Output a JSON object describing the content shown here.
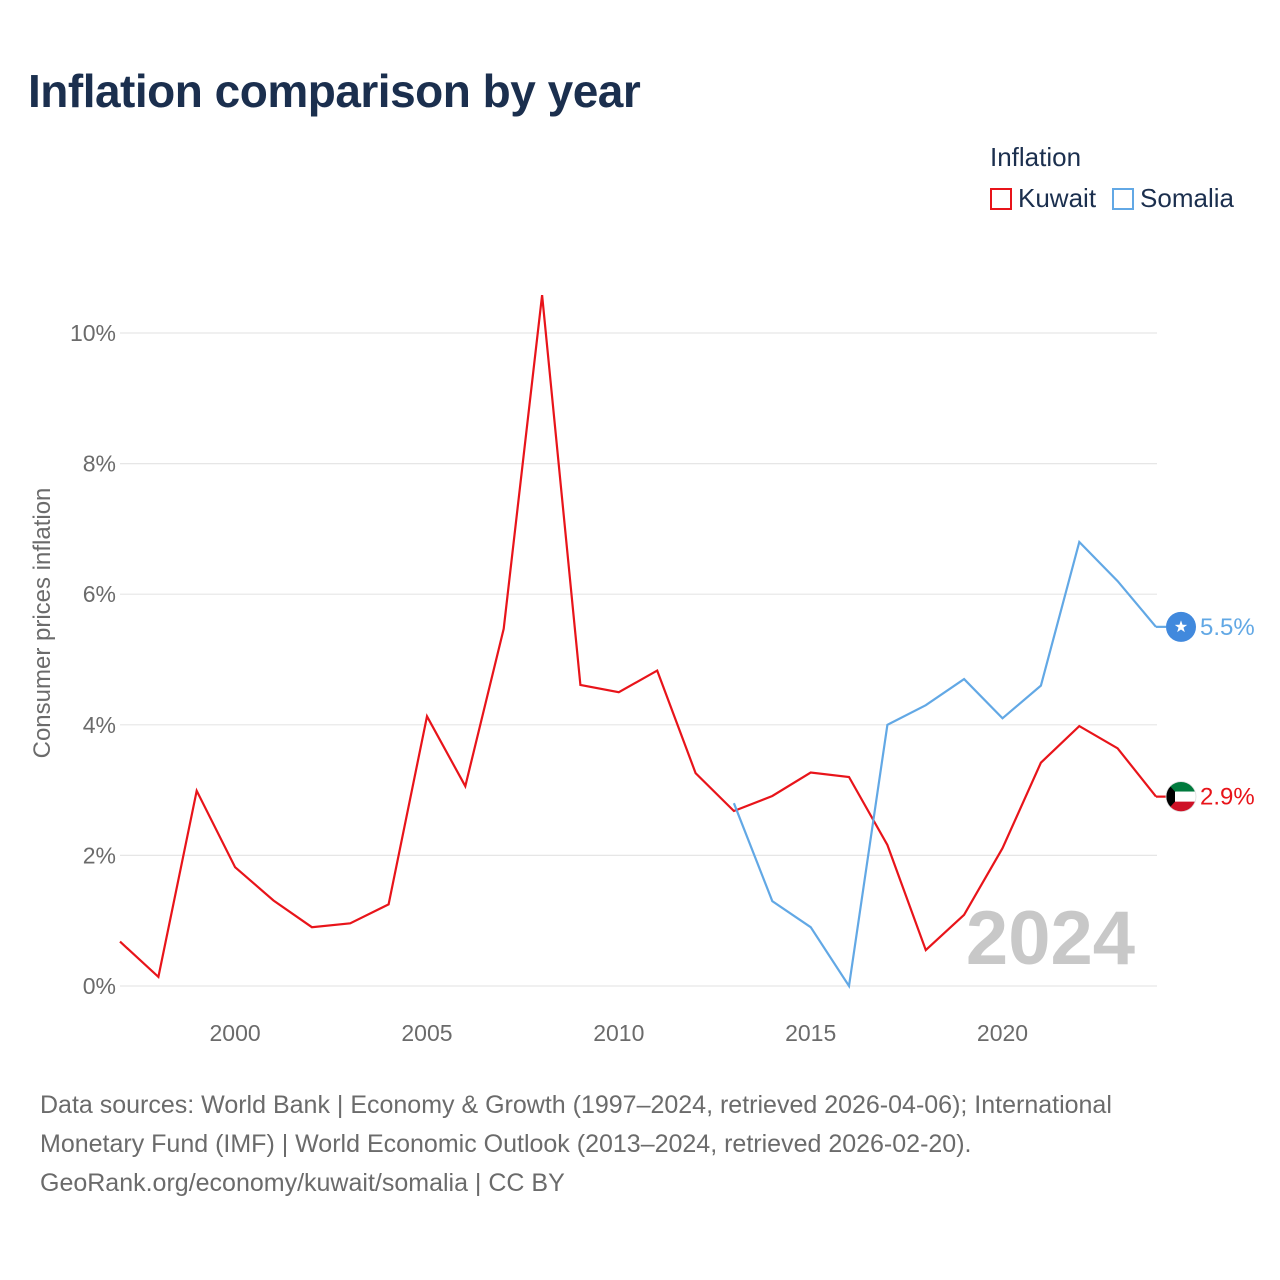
{
  "title": "Inflation comparison by year",
  "legend": {
    "title": "Inflation",
    "items": [
      {
        "label": "Kuwait",
        "color": "#e8141a"
      },
      {
        "label": "Somalia",
        "color": "#62a8e5"
      }
    ]
  },
  "footer": {
    "line1": "Data sources: World Bank | Economy & Growth (1997–2024, retrieved 2026-04-06); International",
    "line2": "Monetary Fund (IMF) | World Economic Outlook (2013–2024, retrieved 2026-02-20).",
    "line3": "GeoRank.org/economy/kuwait/somalia | CC BY"
  },
  "chart_data": {
    "type": "line",
    "ylabel": "Consumer prices inflation",
    "xlim": [
      1997,
      2024
    ],
    "ylim": [
      0,
      10.6
    ],
    "yticks": [
      0,
      2,
      4,
      6,
      8,
      10
    ],
    "ytick_labels": [
      "0%",
      "2%",
      "4%",
      "6%",
      "8%",
      "10%"
    ],
    "xticks": [
      2000,
      2005,
      2010,
      2015,
      2020
    ],
    "xtick_labels": [
      "2000",
      "2005",
      "2010",
      "2015",
      "2020"
    ],
    "year_watermark": "2024",
    "series": [
      {
        "name": "Kuwait",
        "color": "#e8141a",
        "end_label": "2.9%",
        "x": [
          1997,
          1998,
          1999,
          2000,
          2001,
          2002,
          2003,
          2004,
          2005,
          2006,
          2007,
          2008,
          2009,
          2010,
          2011,
          2012,
          2013,
          2014,
          2015,
          2016,
          2017,
          2018,
          2019,
          2020,
          2021,
          2022,
          2023,
          2024
        ],
        "values": [
          0.68,
          0.14,
          2.99,
          1.82,
          1.31,
          0.9,
          0.96,
          1.25,
          4.13,
          3.06,
          5.47,
          10.58,
          4.61,
          4.5,
          4.83,
          3.26,
          2.68,
          2.91,
          3.27,
          3.2,
          2.16,
          0.55,
          1.09,
          2.11,
          3.42,
          3.98,
          3.64,
          2.9
        ]
      },
      {
        "name": "Somalia",
        "color": "#62a8e5",
        "end_label": "5.5%",
        "x": [
          2013,
          2014,
          2015,
          2016,
          2017,
          2018,
          2019,
          2020,
          2021,
          2022,
          2023,
          2024
        ],
        "values": [
          2.8,
          1.3,
          0.9,
          0.0,
          4.0,
          4.3,
          4.7,
          4.1,
          4.6,
          6.8,
          6.2,
          5.5
        ]
      }
    ]
  }
}
